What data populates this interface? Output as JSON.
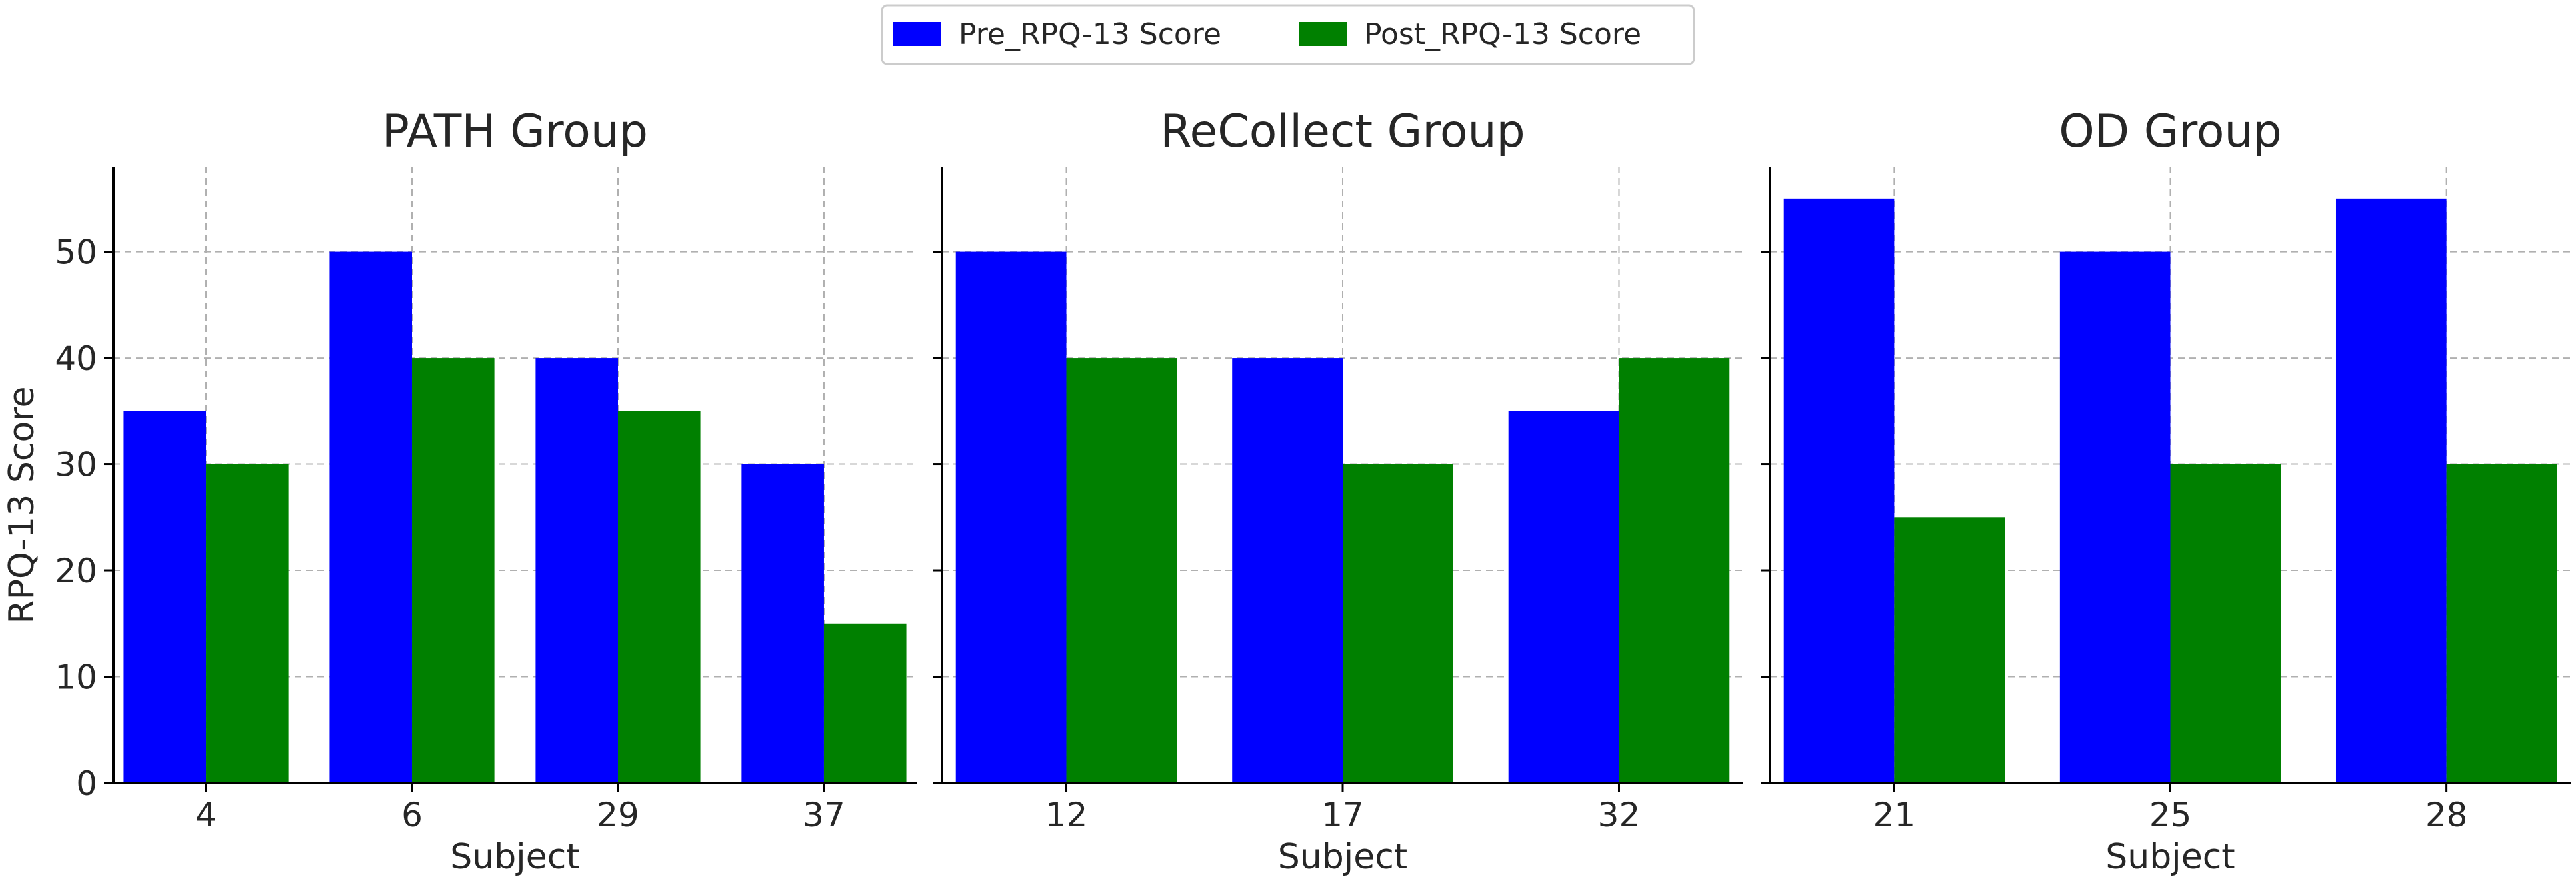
{
  "chart_data": {
    "type": "bar",
    "ylabel": "RPQ-13 Score",
    "ylim": [
      0,
      58
    ],
    "yticks": [
      0,
      10,
      20,
      30,
      40,
      50
    ],
    "grid": true,
    "legend_position": "top-center",
    "series_meta": [
      {
        "name": "Pre_RPQ-13 Score",
        "color": "#0000ff"
      },
      {
        "name": "Post_RPQ-13 Score",
        "color": "#008000"
      }
    ],
    "panels": [
      {
        "title": "PATH Group",
        "xlabel": "Subject",
        "categories": [
          "4",
          "6",
          "29",
          "37"
        ],
        "series": [
          {
            "name": "Pre_RPQ-13 Score",
            "values": [
              35,
              50,
              40,
              30
            ]
          },
          {
            "name": "Post_RPQ-13 Score",
            "values": [
              30,
              40,
              35,
              15
            ]
          }
        ]
      },
      {
        "title": "ReCollect Group",
        "xlabel": "Subject",
        "categories": [
          "12",
          "17",
          "32"
        ],
        "series": [
          {
            "name": "Pre_RPQ-13 Score",
            "values": [
              50,
              40,
              35
            ]
          },
          {
            "name": "Post_RPQ-13 Score",
            "values": [
              40,
              30,
              40
            ]
          }
        ]
      },
      {
        "title": "OD Group",
        "xlabel": "Subject",
        "categories": [
          "21",
          "25",
          "28"
        ],
        "series": [
          {
            "name": "Pre_RPQ-13 Score",
            "values": [
              55,
              50,
              55
            ]
          },
          {
            "name": "Post_RPQ-13 Score",
            "values": [
              25,
              30,
              30
            ]
          }
        ]
      }
    ]
  }
}
